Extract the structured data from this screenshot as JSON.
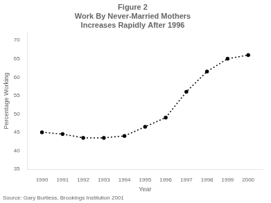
{
  "chart_data": {
    "type": "line",
    "title": [
      "Figure 2",
      "Work By Never-Married Mothers",
      "Increases Rapidly After 1996"
    ],
    "x_label": "Year",
    "y_label": "Percentage Working",
    "annotations": [
      "Source: Gary Burtless, Brookings Institution 2001"
    ],
    "x": [
      1990,
      1991,
      1992,
      1993,
      1994,
      1995,
      1996,
      1997,
      1998,
      1999,
      2000
    ],
    "values": [
      45.0,
      44.5,
      43.5,
      43.5,
      44.0,
      46.5,
      49.0,
      56.0,
      61.5,
      65.0,
      66.0
    ],
    "color": "#000000",
    "marker": "point",
    "line_style": "dotted",
    "xlim": [
      1989.3,
      2000.7
    ],
    "xticks": [
      1990,
      1991,
      1992,
      1993,
      1994,
      1995,
      1996,
      1997,
      1998,
      1999,
      2000
    ],
    "ylim": [
      35,
      72
    ],
    "yticks": [
      35,
      40,
      45,
      50,
      55,
      60,
      65,
      70
    ],
    "grid": false
  }
}
